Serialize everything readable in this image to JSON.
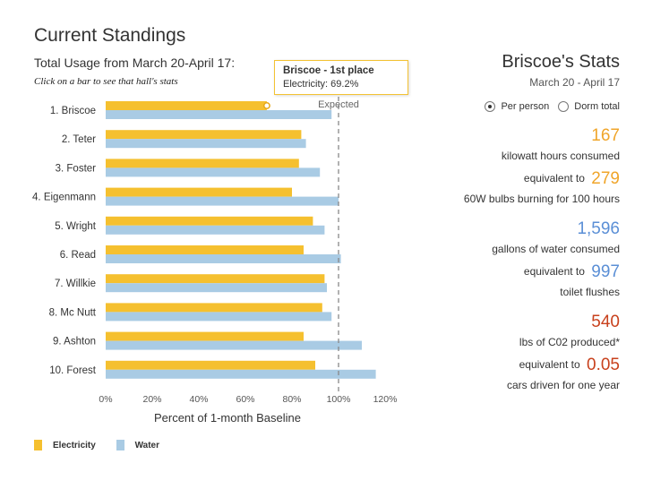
{
  "header": {
    "title": "Current Standings",
    "subtitle": "Total Usage from March 20-April 17:",
    "hint": "Click on a bar to see that hall's stats"
  },
  "tooltip": {
    "title": "Briscoe - 1st place",
    "line": "Electricity: 69.2%"
  },
  "chart_data": {
    "type": "bar",
    "orientation": "horizontal",
    "xlabel": "Percent of 1-month Baseline",
    "xlim": [
      0,
      120
    ],
    "ticks": [
      "0%",
      "20%",
      "40%",
      "60%",
      "80%",
      "100%",
      "120%"
    ],
    "reference_line": {
      "value": 100,
      "label": "Expected"
    },
    "categories": [
      "1. Briscoe",
      "2. Teter",
      "3. Foster",
      "4. Eigenmann",
      "5. Wright",
      "6. Read",
      "7. Willkie",
      "8. Mc Nutt",
      "9. Ashton",
      "10. Forest"
    ],
    "series": [
      {
        "name": "Electricity",
        "color": "#f5c02f",
        "values": [
          69.2,
          84,
          83,
          80,
          89,
          85,
          94,
          93,
          85,
          90
        ]
      },
      {
        "name": "Water",
        "color": "#a9cbe4",
        "values": [
          97,
          86,
          92,
          100,
          94,
          101,
          95,
          97,
          110,
          116
        ]
      }
    ],
    "selected": {
      "category_index": 0,
      "series_index": 0
    }
  },
  "legend": {
    "electricity": "Electricity",
    "water": "Water"
  },
  "stats": {
    "title": "Briscoe's Stats",
    "date": "March 20 - April 17",
    "radio_per_person": "Per person",
    "radio_dorm_total": "Dorm total",
    "kwh_value": "167",
    "kwh_label": "kilowatt hours consumed",
    "equiv_prefix": "equivalent to",
    "bulbs_value": "279",
    "bulbs_label": "60W bulbs burning for 100 hours",
    "water_value": "1,596",
    "water_label": "gallons of water consumed",
    "flush_value": "997",
    "flush_label": "toilet flushes",
    "co2_value": "540",
    "co2_label": "lbs of C02 produced*",
    "cars_value": "0.05",
    "cars_label": "cars driven for one year"
  }
}
